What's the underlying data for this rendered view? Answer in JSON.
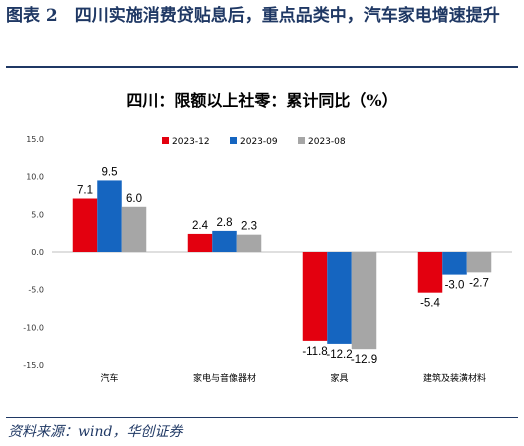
{
  "figure": {
    "title": "图表 2　四川实施消费贷贴息后，重点品类中，汽车家电增速提升",
    "source": "资料来源：wind，华创证券"
  },
  "chart_data": {
    "type": "bar",
    "title": "四川：限额以上社零：累计同比（%）",
    "categories": [
      "汽车",
      "家电与音像器材",
      "家具",
      "建筑及装潢材料"
    ],
    "series": [
      {
        "name": "2023-12",
        "color": "#e3000f",
        "values": [
          7.1,
          2.4,
          -11.8,
          -5.4
        ]
      },
      {
        "name": "2023-09",
        "color": "#1565c0",
        "values": [
          9.5,
          2.8,
          -12.2,
          -3.0
        ]
      },
      {
        "name": "2023-08",
        "color": "#a6a6a6",
        "values": [
          6.0,
          2.3,
          -12.9,
          -2.7
        ]
      }
    ],
    "ylim": [
      -15,
      15
    ],
    "yticks": [
      "15.0",
      "10.0",
      "5.0",
      "0.0",
      "-5.0",
      "-10.0",
      "-15.0"
    ],
    "legend_position": "top",
    "grid": false,
    "xlabel": "",
    "ylabel": ""
  }
}
